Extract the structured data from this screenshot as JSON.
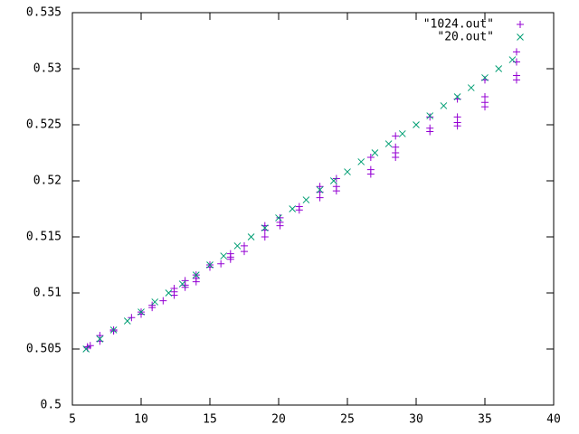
{
  "chart_data": {
    "type": "scatter",
    "xlim": [
      5,
      40
    ],
    "ylim": [
      0.5,
      0.535
    ],
    "xticks": [
      5,
      10,
      15,
      20,
      25,
      30,
      35,
      40
    ],
    "yticks": [
      0.5,
      0.505,
      0.51,
      0.515,
      0.52,
      0.525,
      0.53,
      0.535
    ],
    "legend": "upper right",
    "series": [
      {
        "name": "\"1024.out\"",
        "color": "#9400d3",
        "marker": "plus",
        "x": [
          6.1,
          6.1,
          6.3,
          7,
          7,
          8,
          8,
          9.3,
          10,
          10,
          10.8,
          10.8,
          11.6,
          12.4,
          12.4,
          12.4,
          13.2,
          13.2,
          13.2,
          14,
          14,
          14,
          15,
          15,
          15.8,
          16.5,
          16.5,
          16.5,
          17.5,
          17.5,
          19,
          19,
          19,
          20.1,
          20.1,
          20.1,
          21.5,
          21.5,
          23,
          23,
          23,
          24.2,
          24.2,
          24.2,
          26.7,
          26.7,
          26.7,
          28.5,
          28.5,
          28.5,
          28.5,
          31,
          31,
          31,
          33,
          33,
          33,
          33,
          35,
          35,
          35,
          35,
          37.3,
          37.3,
          37.3,
          37.3
        ],
        "values": [
          0.5052,
          0.5051,
          0.5053,
          0.5062,
          0.5057,
          0.5067,
          0.5066,
          0.5078,
          0.5083,
          0.5081,
          0.5089,
          0.5087,
          0.5093,
          0.5104,
          0.5101,
          0.5098,
          0.5111,
          0.5107,
          0.5105,
          0.5116,
          0.5113,
          0.511,
          0.5125,
          0.5123,
          0.5126,
          0.5135,
          0.5132,
          0.513,
          0.5142,
          0.5137,
          0.516,
          0.5156,
          0.515,
          0.5167,
          0.5163,
          0.516,
          0.5177,
          0.5174,
          0.5195,
          0.519,
          0.5185,
          0.5202,
          0.5195,
          0.5191,
          0.5221,
          0.521,
          0.5206,
          0.524,
          0.523,
          0.5225,
          0.5221,
          0.5257,
          0.5247,
          0.5244,
          0.5273,
          0.5257,
          0.5252,
          0.5249,
          0.529,
          0.5275,
          0.527,
          0.5266,
          0.5315,
          0.5306,
          0.5294,
          0.529
        ]
      },
      {
        "name": "\"20.out\"",
        "color": "#009e73",
        "marker": "cross",
        "x": [
          6,
          7,
          8,
          9,
          10,
          11,
          12,
          13,
          14,
          15,
          16,
          17,
          18,
          19,
          20,
          21,
          22,
          23,
          24,
          25,
          26,
          27,
          28,
          29,
          30,
          31,
          32,
          33,
          34,
          35,
          36,
          37
        ],
        "values": [
          0.505,
          0.5059,
          0.5067,
          0.5075,
          0.5083,
          0.5092,
          0.51,
          0.5108,
          0.5116,
          0.5125,
          0.5133,
          0.5142,
          0.515,
          0.5158,
          0.5167,
          0.5175,
          0.5183,
          0.5192,
          0.52,
          0.5208,
          0.5217,
          0.5225,
          0.5233,
          0.5242,
          0.525,
          0.5258,
          0.5267,
          0.5275,
          0.5283,
          0.5292,
          0.53,
          0.5308
        ]
      }
    ]
  }
}
